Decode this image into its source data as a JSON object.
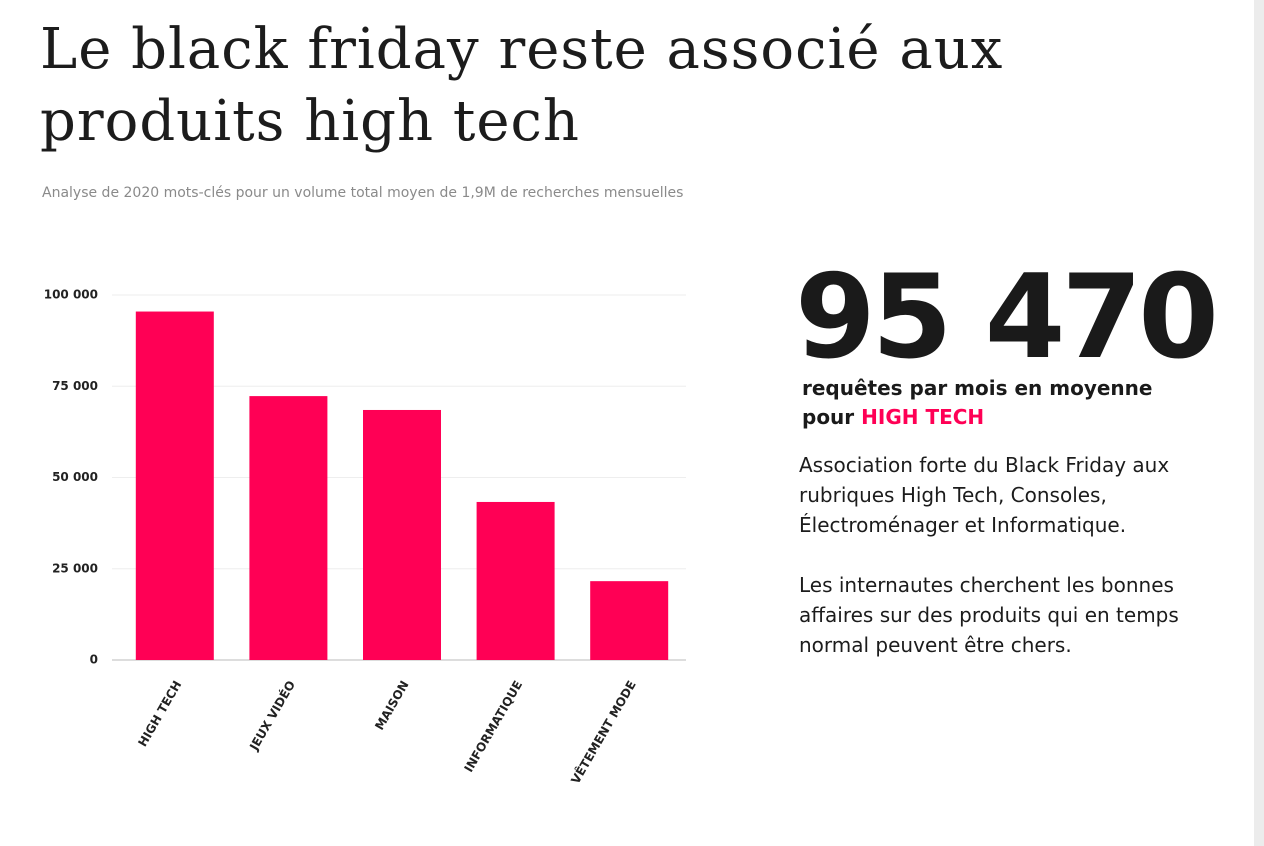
{
  "chart_data": {
    "type": "bar",
    "title": "Le black friday reste associé aux produits high tech",
    "subtitle": "Analyse de 2020 mots-clés pour un volume total moyen de 1,9M de recherches mensuelles",
    "categories": [
      "HIGH TECH",
      "JEUX VIDÉO",
      "MAISON",
      "INFORMATIQUE",
      "VÊTEMENT MODE"
    ],
    "values": [
      95470,
      72300,
      68500,
      43300,
      21600
    ],
    "color": "#ff0055",
    "ylim": [
      0,
      100000
    ],
    "yticks": [
      0,
      {
        "value": 25000,
        "label": "25 000"
      },
      {
        "value": 50000,
        "label": "50 000"
      },
      {
        "value": 75000,
        "label": "75 000"
      },
      {
        "value": 100000,
        "label": "100 000"
      }
    ],
    "grid": true
  },
  "highlight": {
    "number": "95 470",
    "caption": "requêtes par mois en moyenne",
    "prefix": "pour",
    "category": "HIGH TECH"
  },
  "paragraphs": [
    "Association forte du Black Friday aux rubriques High Tech, Consoles, Électroménager et Informatique.",
    "Les internautes cherchent les bonnes affaires sur des produits qui en temps normal peuvent être chers."
  ]
}
